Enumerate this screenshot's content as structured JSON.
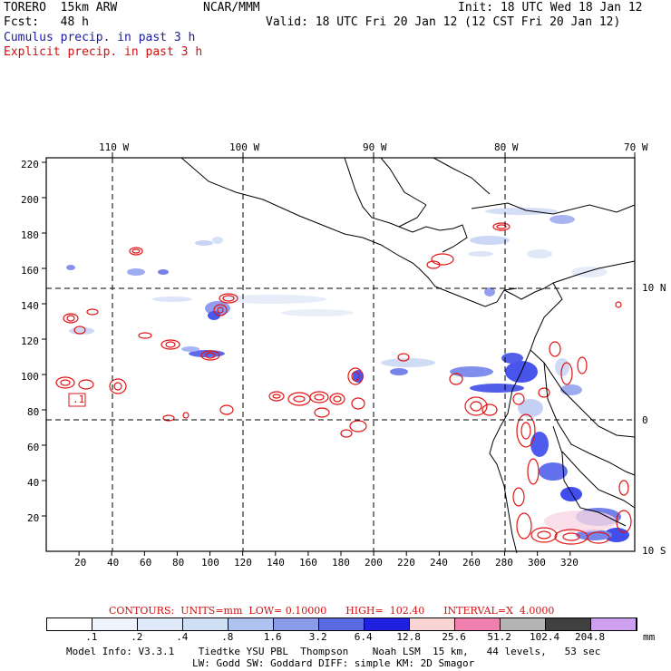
{
  "header": {
    "model": "TORERO  15km ARW",
    "org": "NCAR/MMM",
    "init": "Init: 18 UTC Wed 18 Jan 12",
    "fcst": "Fcst:   48 h",
    "valid": "Valid: 18 UTC Fri 20 Jan 12 (12 CST Fri 20 Jan 12)",
    "line_cumulus": "Cumulus precip. in past 3 h",
    "line_explicit": "Explicit precip. in past 3 h"
  },
  "map": {
    "lon_labels": [
      "110 W",
      "100 W",
      "90 W",
      "80 W",
      "70 W"
    ],
    "lat_labels": [
      "10 N",
      "0",
      "10 S"
    ],
    "x_ticks": [
      "20",
      "40",
      "60",
      "80",
      "100",
      "120",
      "140",
      "160",
      "180",
      "200",
      "220",
      "240",
      "260",
      "280",
      "300",
      "320"
    ],
    "y_ticks": [
      "20",
      "40",
      "60",
      "80",
      "100",
      "120",
      "140",
      "160",
      "180",
      "200",
      "220"
    ],
    "box_label": ".1",
    "colors": {
      "cumulus": "#1414e6",
      "explicit": "#e01414",
      "grid": "#000000"
    }
  },
  "contours_line": {
    "label": "CONTOURS:  UNITS=mm  LOW= 0.10000      HIGH=  102.40      INTERVAL=X  4.0000"
  },
  "colorbar": {
    "labels": [
      ".1",
      ".2",
      ".4",
      ".8",
      "1.6",
      "3.2",
      "6.4",
      "12.8",
      "25.6",
      "51.2",
      "102.4",
      "204.8"
    ],
    "unit": "mm",
    "colors": [
      "#ffffff",
      "#eef3fb",
      "#dfe9f7",
      "#cfe0f5",
      "#aec4ee",
      "#8a9ce8",
      "#5a6ae0",
      "#2020e0",
      "#f8d4d4",
      "#f080b0",
      "#b4b4b4",
      "#404040",
      "#d0a0f0"
    ]
  },
  "footer": {
    "line1": "Model Info: V3.3.1    Tiedtke YSU PBL  Thompson    Noah LSM  15 km,   44 levels,   53 sec",
    "line2": "LW: Godd SW: Goddard DIFF: simple KM: 2D Smagor"
  }
}
